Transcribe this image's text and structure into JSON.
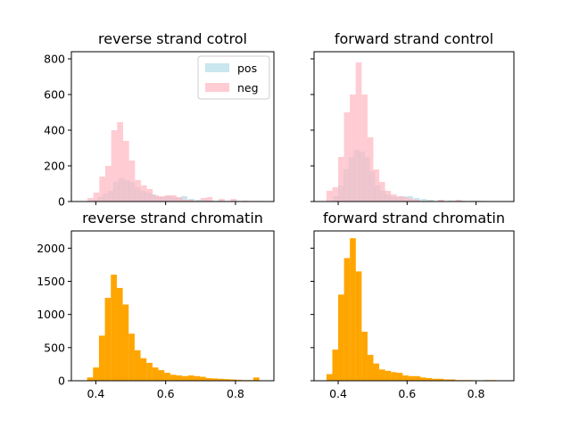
{
  "chart_data": [
    {
      "type": "bar",
      "title": "reverse strand cotrol",
      "ylim": [
        0,
        840
      ],
      "yticks": [
        0,
        200,
        400,
        600,
        800
      ],
      "xlim": [
        0.33,
        0.91
      ],
      "xticks": [
        0.4,
        0.6,
        0.8
      ],
      "show_xtick_labels": false,
      "show_ytick_labels": true,
      "bin_width": 0.0172,
      "legend": {
        "placement": "top-right",
        "entries": [
          "pos",
          "neg"
        ]
      },
      "series": [
        {
          "name": "pos",
          "color": "#add8e6",
          "alpha": 0.65,
          "bins": [
            [
              0.39,
              10
            ],
            [
              0.405,
              25
            ],
            [
              0.42,
              45
            ],
            [
              0.435,
              60
            ],
            [
              0.45,
              110
            ],
            [
              0.465,
              130
            ],
            [
              0.48,
              120
            ],
            [
              0.495,
              110
            ],
            [
              0.51,
              80
            ],
            [
              0.525,
              60
            ],
            [
              0.54,
              50
            ],
            [
              0.555,
              40
            ],
            [
              0.57,
              25
            ],
            [
              0.585,
              25
            ],
            [
              0.6,
              30
            ],
            [
              0.615,
              25
            ],
            [
              0.63,
              20
            ],
            [
              0.645,
              30
            ],
            [
              0.665,
              15
            ],
            [
              0.685,
              10
            ],
            [
              0.705,
              8
            ],
            [
              0.725,
              5
            ],
            [
              0.745,
              5
            ],
            [
              0.77,
              3
            ],
            [
              0.8,
              3
            ],
            [
              0.83,
              2
            ]
          ]
        },
        {
          "name": "neg",
          "color": "#ffb6c1",
          "alpha": 0.7,
          "bins": [
            [
              0.376,
              20
            ],
            [
              0.393,
              50
            ],
            [
              0.41,
              140
            ],
            [
              0.427,
              200
            ],
            [
              0.444,
              400
            ],
            [
              0.461,
              445
            ],
            [
              0.478,
              340
            ],
            [
              0.495,
              230
            ],
            [
              0.512,
              120
            ],
            [
              0.529,
              90
            ],
            [
              0.546,
              70
            ],
            [
              0.563,
              35
            ],
            [
              0.58,
              30
            ],
            [
              0.597,
              35
            ],
            [
              0.614,
              35
            ],
            [
              0.631,
              25
            ],
            [
              0.648,
              10
            ],
            [
              0.665,
              10
            ],
            [
              0.7,
              20
            ],
            [
              0.717,
              25
            ],
            [
              0.752,
              15
            ],
            [
              0.786,
              15
            ],
            [
              0.82,
              5
            ],
            [
              0.855,
              3
            ]
          ]
        }
      ]
    },
    {
      "type": "bar",
      "title": "forward strand control",
      "ylim": [
        0,
        840
      ],
      "yticks": [
        0,
        200,
        400,
        600,
        800
      ],
      "xlim": [
        0.33,
        0.91
      ],
      "xticks": [
        0.4,
        0.6,
        0.8
      ],
      "show_xtick_labels": false,
      "show_ytick_labels": false,
      "bin_width": 0.0172,
      "series": [
        {
          "name": "pos",
          "color": "#add8e6",
          "alpha": 0.65,
          "bins": [
            [
              0.385,
              30
            ],
            [
              0.4,
              90
            ],
            [
              0.415,
              180
            ],
            [
              0.43,
              250
            ],
            [
              0.445,
              290
            ],
            [
              0.46,
              280
            ],
            [
              0.475,
              250
            ],
            [
              0.49,
              170
            ],
            [
              0.505,
              90
            ],
            [
              0.52,
              60
            ],
            [
              0.535,
              40
            ],
            [
              0.55,
              30
            ],
            [
              0.565,
              25
            ],
            [
              0.58,
              30
            ],
            [
              0.6,
              30
            ],
            [
              0.62,
              20
            ],
            [
              0.64,
              15
            ],
            [
              0.66,
              10
            ],
            [
              0.69,
              8
            ],
            [
              0.72,
              5
            ],
            [
              0.75,
              5
            ],
            [
              0.78,
              4
            ],
            [
              0.82,
              3
            ]
          ]
        },
        {
          "name": "neg",
          "color": "#ffb6c1",
          "alpha": 0.7,
          "bins": [
            [
              0.366,
              60
            ],
            [
              0.383,
              80
            ],
            [
              0.4,
              250
            ],
            [
              0.417,
              500
            ],
            [
              0.434,
              600
            ],
            [
              0.451,
              780
            ],
            [
              0.468,
              600
            ],
            [
              0.485,
              360
            ],
            [
              0.502,
              180
            ],
            [
              0.519,
              110
            ],
            [
              0.536,
              60
            ],
            [
              0.553,
              40
            ],
            [
              0.57,
              30
            ],
            [
              0.587,
              25
            ],
            [
              0.604,
              15
            ],
            [
              0.621,
              10
            ],
            [
              0.655,
              5
            ],
            [
              0.69,
              10
            ],
            [
              0.74,
              10
            ],
            [
              0.8,
              4
            ]
          ]
        }
      ]
    },
    {
      "type": "bar",
      "title": "reverse strand chromatin",
      "ylim": [
        0,
        2260
      ],
      "yticks": [
        0,
        500,
        1000,
        1500,
        2000
      ],
      "xlim": [
        0.33,
        0.91
      ],
      "xticks": [
        0.4,
        0.6,
        0.8
      ],
      "show_xtick_labels": true,
      "show_ytick_labels": true,
      "bin_width": 0.0172,
      "series": [
        {
          "name": "chromatin",
          "color": "#ffa500",
          "alpha": 1,
          "bins": [
            [
              0.375,
              50
            ],
            [
              0.392,
              200
            ],
            [
              0.409,
              680
            ],
            [
              0.426,
              1250
            ],
            [
              0.443,
              1600
            ],
            [
              0.46,
              1400
            ],
            [
              0.477,
              1150
            ],
            [
              0.494,
              710
            ],
            [
              0.511,
              460
            ],
            [
              0.528,
              340
            ],
            [
              0.545,
              270
            ],
            [
              0.562,
              200
            ],
            [
              0.579,
              160
            ],
            [
              0.596,
              120
            ],
            [
              0.613,
              90
            ],
            [
              0.63,
              80
            ],
            [
              0.647,
              70
            ],
            [
              0.664,
              80
            ],
            [
              0.681,
              70
            ],
            [
              0.698,
              60
            ],
            [
              0.715,
              40
            ],
            [
              0.732,
              35
            ],
            [
              0.749,
              30
            ],
            [
              0.766,
              25
            ],
            [
              0.783,
              20
            ],
            [
              0.8,
              15
            ],
            [
              0.817,
              10
            ],
            [
              0.834,
              10
            ],
            [
              0.851,
              50
            ]
          ]
        }
      ]
    },
    {
      "type": "bar",
      "title": "forward strand chromatin",
      "ylim": [
        0,
        2260
      ],
      "yticks": [
        0,
        500,
        1000,
        1500,
        2000
      ],
      "xlim": [
        0.33,
        0.91
      ],
      "xticks": [
        0.4,
        0.6,
        0.8
      ],
      "show_xtick_labels": true,
      "show_ytick_labels": false,
      "bin_width": 0.0172,
      "series": [
        {
          "name": "chromatin",
          "color": "#ffa500",
          "alpha": 1,
          "bins": [
            [
              0.366,
              100
            ],
            [
              0.383,
              470
            ],
            [
              0.4,
              1300
            ],
            [
              0.417,
              1850
            ],
            [
              0.434,
              2150
            ],
            [
              0.451,
              1650
            ],
            [
              0.468,
              740
            ],
            [
              0.485,
              390
            ],
            [
              0.502,
              260
            ],
            [
              0.519,
              170
            ],
            [
              0.536,
              150
            ],
            [
              0.553,
              130
            ],
            [
              0.57,
              120
            ],
            [
              0.587,
              80
            ],
            [
              0.604,
              70
            ],
            [
              0.621,
              70
            ],
            [
              0.638,
              50
            ],
            [
              0.655,
              40
            ],
            [
              0.672,
              30
            ],
            [
              0.689,
              30
            ],
            [
              0.706,
              20
            ],
            [
              0.723,
              20
            ],
            [
              0.74,
              10
            ],
            [
              0.757,
              10
            ],
            [
              0.774,
              10
            ],
            [
              0.791,
              5
            ],
            [
              0.808,
              5
            ],
            [
              0.825,
              10
            ],
            [
              0.842,
              10
            ],
            [
              0.859,
              5
            ],
            [
              0.876,
              5
            ]
          ]
        }
      ]
    }
  ]
}
